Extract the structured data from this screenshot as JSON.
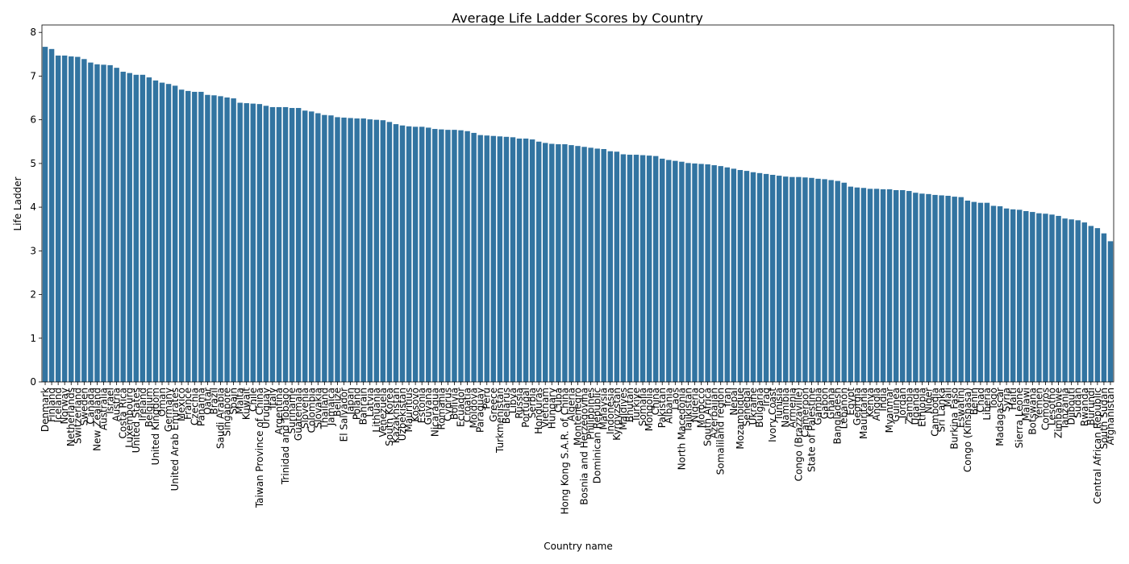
{
  "chart_data": {
    "type": "bar",
    "title": "Average Life Ladder Scores by Country",
    "xlabel": "Country name",
    "ylabel": "Life Ladder",
    "color": "#3274a1",
    "categories": [
      "Denmark",
      "Finland",
      "Iceland",
      "Norway",
      "Netherlands",
      "Switzerland",
      "Sweden",
      "Canada",
      "New Zealand",
      "Australia",
      "Israel",
      "Austria",
      "Costa Rica",
      "Luxembourg",
      "United States",
      "Ireland",
      "Belgium",
      "United Kingdom",
      "Oman",
      "Germany",
      "United Arab Emirates",
      "Mexico",
      "France",
      "Czechia",
      "Panama",
      "Qatar",
      "Brazil",
      "Saudi Arabia",
      "Singapore",
      "Spain",
      "Malta",
      "Kuwait",
      "Chile",
      "Taiwan Province of China",
      "Uruguay",
      "Italy",
      "Argentina",
      "Trinidad and Tobago",
      "Suriname",
      "Guatemala",
      "Slovenia",
      "Colombia",
      "Slovakia",
      "Thailand",
      "Jamaica",
      "Belize",
      "El Salvador",
      "Japan",
      "Poland",
      "Bahrain",
      "Latvia",
      "Lithuania",
      "Venezuela",
      "South Korea",
      "Kazakhstan",
      "Uzbekistan",
      "Mauritius",
      "Kosovo",
      "Estonia",
      "Guyana",
      "Nicaragua",
      "Romania",
      "Cyprus",
      "Bolivia",
      "Ecuador",
      "Croatia",
      "Moldova",
      "Paraguay",
      "Peru",
      "Greece",
      "Turkmenistan",
      "Belarus",
      "Libya",
      "Russia",
      "Portugal",
      "Serbia",
      "Honduras",
      "Vietnam",
      "Hungary",
      "Cuba",
      "Hong Kong S.A.R. of China",
      "Algeria",
      "Montenegro",
      "Bosnia and Herzegovina",
      "Philippines",
      "Dominican Republic",
      "Malaysia",
      "Indonesia",
      "Kyrgyzstan",
      "Maldives",
      "Bhutan",
      "Turkiye",
      "Somalia",
      "Mongolia",
      "China",
      "Pakistan",
      "Albania",
      "Laos",
      "North Macedonia",
      "Tajikistan",
      "Nigeria",
      "Morocco",
      "South Africa",
      "Azerbaijan",
      "Somaliland region",
      "Iran",
      "Nepal",
      "Mozambique",
      "Senegal",
      "Ukraine",
      "Bulgaria",
      "Iraq",
      "Ivory Coast",
      "Tunisia",
      "Namibia",
      "Armenia",
      "Congo (Brazzaville)",
      "Cameroon",
      "State of Palestine",
      "Gambia",
      "Gabon",
      "Ghana",
      "Bangladesh",
      "Lebanon",
      "Egypt",
      "Georgia",
      "Mauritania",
      "Kenya",
      "Angola",
      "India",
      "Myanmar",
      "Guinea",
      "Jordan",
      "Zambia",
      "Uganda",
      "Ethiopia",
      "Niger",
      "Cambodia",
      "Sri Lanka",
      "Mali",
      "Burkina Faso",
      "Eswatini",
      "Congo (Kinshasa)",
      "Benin",
      "Chad",
      "Liberia",
      "Togo",
      "Madagascar",
      "Syria",
      "Haiti",
      "Sierra Leone",
      "Malawi",
      "Botswana",
      "Yemen",
      "Comoros",
      "Lesotho",
      "Zimbabwe",
      "Tanzania",
      "Djibouti",
      "Sudan",
      "Rwanda",
      "Burundi",
      "Central African Republic",
      "South Sudan",
      "Afghanistan"
    ],
    "values": [
      7.67,
      7.62,
      7.47,
      7.47,
      7.45,
      7.44,
      7.39,
      7.31,
      7.27,
      7.26,
      7.25,
      7.19,
      7.1,
      7.07,
      7.03,
      7.03,
      6.97,
      6.9,
      6.85,
      6.82,
      6.78,
      6.69,
      6.66,
      6.64,
      6.64,
      6.57,
      6.56,
      6.54,
      6.51,
      6.49,
      6.39,
      6.38,
      6.37,
      6.36,
      6.32,
      6.29,
      6.29,
      6.29,
      6.27,
      6.27,
      6.21,
      6.19,
      6.15,
      6.11,
      6.1,
      6.06,
      6.05,
      6.04,
      6.03,
      6.03,
      6.01,
      6.0,
      5.99,
      5.95,
      5.9,
      5.87,
      5.85,
      5.84,
      5.84,
      5.82,
      5.79,
      5.78,
      5.77,
      5.77,
      5.76,
      5.74,
      5.7,
      5.65,
      5.64,
      5.63,
      5.62,
      5.61,
      5.6,
      5.57,
      5.57,
      5.55,
      5.5,
      5.47,
      5.45,
      5.44,
      5.44,
      5.42,
      5.4,
      5.38,
      5.36,
      5.34,
      5.33,
      5.28,
      5.27,
      5.21,
      5.2,
      5.2,
      5.19,
      5.18,
      5.17,
      5.11,
      5.08,
      5.06,
      5.04,
      5.01,
      5.0,
      4.99,
      4.98,
      4.96,
      4.94,
      4.91,
      4.88,
      4.85,
      4.83,
      4.8,
      4.78,
      4.76,
      4.74,
      4.72,
      4.7,
      4.69,
      4.69,
      4.68,
      4.67,
      4.65,
      4.64,
      4.62,
      4.6,
      4.56,
      4.47,
      4.45,
      4.44,
      4.42,
      4.42,
      4.41,
      4.41,
      4.39,
      4.39,
      4.37,
      4.33,
      4.31,
      4.3,
      4.28,
      4.27,
      4.26,
      4.24,
      4.23,
      4.15,
      4.12,
      4.1,
      4.1,
      4.03,
      4.02,
      3.97,
      3.95,
      3.94,
      3.91,
      3.89,
      3.86,
      3.85,
      3.83,
      3.8,
      3.74,
      3.72,
      3.7,
      3.65,
      3.57,
      3.52,
      3.4,
      3.22
    ],
    "ylim": [
      0,
      8.17
    ],
    "yticks": [
      0,
      1,
      2,
      3,
      4,
      5,
      6,
      7,
      8
    ]
  }
}
